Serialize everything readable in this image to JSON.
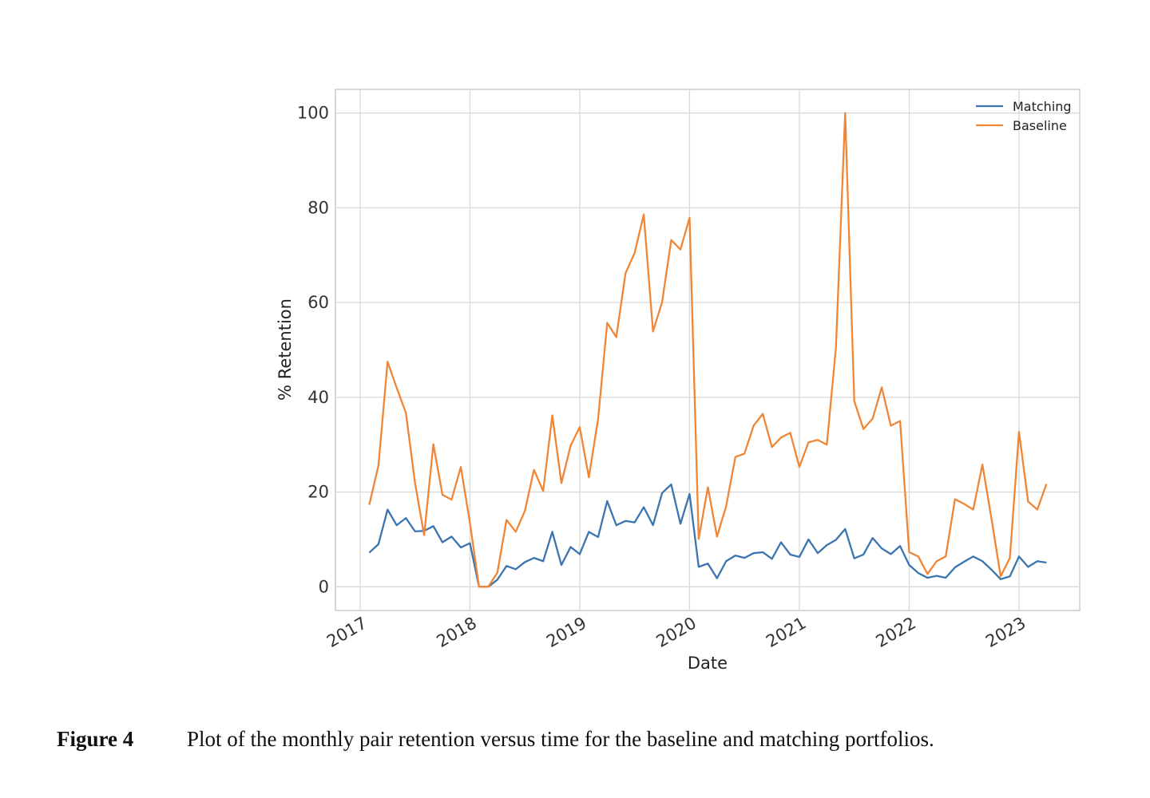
{
  "chart_data": {
    "type": "line",
    "xlabel": "Date",
    "ylabel": "% Retention",
    "x": [
      2017.083,
      2017.167,
      2017.25,
      2017.333,
      2017.417,
      2017.5,
      2017.583,
      2017.667,
      2017.75,
      2017.833,
      2017.917,
      2018.0,
      2018.083,
      2018.167,
      2018.25,
      2018.333,
      2018.417,
      2018.5,
      2018.583,
      2018.667,
      2018.75,
      2018.833,
      2018.917,
      2019.0,
      2019.083,
      2019.167,
      2019.25,
      2019.333,
      2019.417,
      2019.5,
      2019.583,
      2019.667,
      2019.75,
      2019.833,
      2019.917,
      2020.0,
      2020.083,
      2020.167,
      2020.25,
      2020.333,
      2020.417,
      2020.5,
      2020.583,
      2020.667,
      2020.75,
      2020.833,
      2020.917,
      2021.0,
      2021.083,
      2021.167,
      2021.25,
      2021.333,
      2021.417,
      2021.5,
      2021.583,
      2021.667,
      2021.75,
      2021.833,
      2021.917,
      2022.0,
      2022.083,
      2022.167,
      2022.25,
      2022.333,
      2022.417,
      2022.5,
      2022.583,
      2022.667,
      2022.75,
      2022.833,
      2022.917,
      2023.0,
      2023.083,
      2023.167,
      2023.25
    ],
    "series": [
      {
        "name": "Matching",
        "color": "#3b75af",
        "values": [
          7.2,
          9.0,
          16.3,
          13.0,
          14.5,
          11.7,
          11.8,
          12.8,
          9.4,
          10.6,
          8.3,
          9.2,
          0,
          0,
          1.5,
          4.4,
          3.7,
          5.2,
          6.1,
          5.4,
          11.6,
          4.6,
          8.4,
          6.9,
          11.6,
          10.5,
          18.1,
          13.0,
          13.9,
          13.6,
          16.8,
          13.0,
          19.8,
          21.6,
          13.3,
          19.6,
          4.2,
          4.9,
          1.8,
          5.4,
          6.6,
          6.1,
          7.1,
          7.3,
          5.9,
          9.4,
          6.8,
          6.3,
          10.0,
          7.1,
          8.8,
          9.9,
          12.2,
          6.0,
          6.8,
          10.3,
          8.1,
          6.9,
          8.6,
          4.6,
          2.9,
          1.9,
          2.3,
          1.9,
          4.1,
          5.3,
          6.4,
          5.4,
          3.6,
          1.6,
          2.2,
          6.4,
          4.2,
          5.4,
          5.1
        ]
      },
      {
        "name": "Baseline",
        "color": "#ef8636",
        "values": [
          17.3,
          25.6,
          47.5,
          42.0,
          36.7,
          21.9,
          10.9,
          30.1,
          19.4,
          18.4,
          25.3,
          13.5,
          0,
          0,
          3.0,
          14.1,
          11.6,
          16.0,
          24.7,
          20.2,
          36.2,
          21.9,
          29.8,
          33.7,
          23.1,
          35.4,
          55.7,
          52.7,
          66.2,
          70.5,
          78.6,
          53.9,
          60.1,
          73.2,
          71.2,
          77.9,
          10.1,
          21.0,
          10.6,
          17.0,
          27.4,
          28.1,
          34.0,
          36.5,
          29.5,
          31.5,
          32.5,
          25.3,
          30.5,
          31.0,
          30.0,
          50.5,
          100,
          39.2,
          33.3,
          35.5,
          42.1,
          34.0,
          35.0,
          7.3,
          6.4,
          2.7,
          5.4,
          6.4,
          18.5,
          17.5,
          16.3,
          25.8,
          14.3,
          2.2,
          6.1,
          32.7,
          18.0,
          16.3,
          21.7
        ]
      }
    ],
    "xlim": [
      2016.775,
      2023.553
    ],
    "xticks": [
      2017,
      2018,
      2019,
      2020,
      2021,
      2022,
      2023
    ],
    "ylim": [
      -5,
      105
    ],
    "yticks": [
      0,
      20,
      40,
      60,
      80,
      100
    ],
    "grid": true,
    "legend": "upper right"
  },
  "figure": {
    "label": "Figure 4",
    "caption": "Plot of the monthly pair retention versus time for the baseline and matching portfolios."
  }
}
